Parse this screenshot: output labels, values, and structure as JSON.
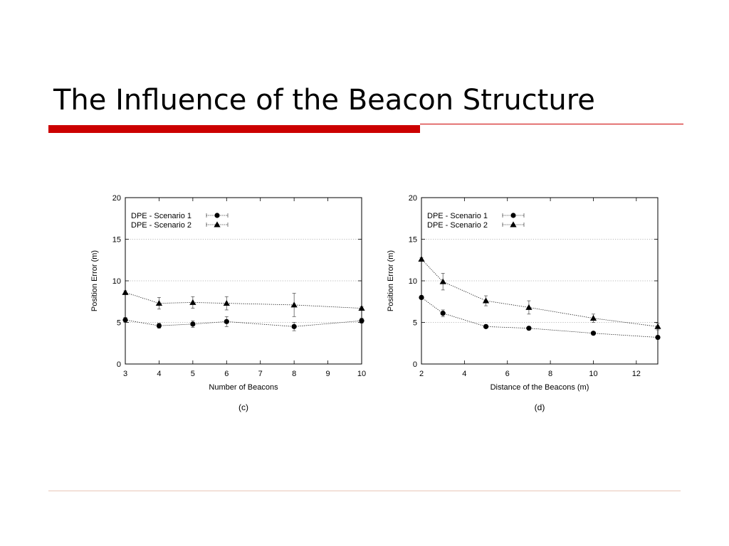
{
  "slide": {
    "title": "The Influence of the Beacon Structure",
    "accent_color": "#cc0000",
    "bottom_rule_color": "#e8c7b8"
  },
  "chart_data": [
    {
      "type": "line",
      "caption": "(c)",
      "xlabel": "Number of Beacons",
      "ylabel": "Position Error (m)",
      "xlim": [
        3,
        10
      ],
      "ylim": [
        0,
        20
      ],
      "xticks": [
        3,
        4,
        5,
        6,
        7,
        8,
        9,
        10
      ],
      "yticks": [
        0,
        5,
        10,
        15,
        20
      ],
      "grid": "horizontal-dotted",
      "legend_position": "top-left",
      "series": [
        {
          "name": "DPE - Scenario 1",
          "marker": "circle",
          "x": [
            3,
            4,
            5,
            6,
            8,
            10
          ],
          "y": [
            5.3,
            4.6,
            4.8,
            5.1,
            4.5,
            5.2
          ],
          "err": [
            0.3,
            0.3,
            0.4,
            0.6,
            0.5,
            0.3
          ]
        },
        {
          "name": "DPE - Scenario 2",
          "marker": "triangle",
          "x": [
            3,
            4,
            5,
            6,
            8,
            10
          ],
          "y": [
            8.6,
            7.3,
            7.4,
            7.3,
            7.1,
            6.7
          ],
          "err": [
            0.2,
            0.7,
            0.7,
            0.8,
            1.4,
            0.2
          ]
        }
      ]
    },
    {
      "type": "line",
      "caption": "(d)",
      "xlabel": "Distance of the Beacons (m)",
      "ylabel": "Position Error (m)",
      "xlim": [
        2,
        13
      ],
      "ylim": [
        0,
        20
      ],
      "xticks": [
        2,
        4,
        6,
        8,
        10,
        12
      ],
      "yticks": [
        0,
        5,
        10,
        15,
        20
      ],
      "grid": "horizontal-dotted",
      "legend_position": "top-left",
      "series": [
        {
          "name": "DPE - Scenario 1",
          "marker": "circle",
          "x": [
            2,
            3,
            5,
            7,
            10,
            13
          ],
          "y": [
            8.0,
            6.1,
            4.5,
            4.3,
            3.7,
            3.2
          ],
          "err": [
            0.2,
            0.4,
            0.2,
            0.2,
            0.2,
            0.2
          ]
        },
        {
          "name": "DPE - Scenario 2",
          "marker": "triangle",
          "x": [
            2,
            3,
            5,
            7,
            10,
            13
          ],
          "y": [
            12.6,
            9.9,
            7.6,
            6.8,
            5.5,
            4.5
          ],
          "err": [
            0.2,
            1.0,
            0.6,
            0.8,
            0.5,
            0.4
          ]
        }
      ]
    }
  ]
}
